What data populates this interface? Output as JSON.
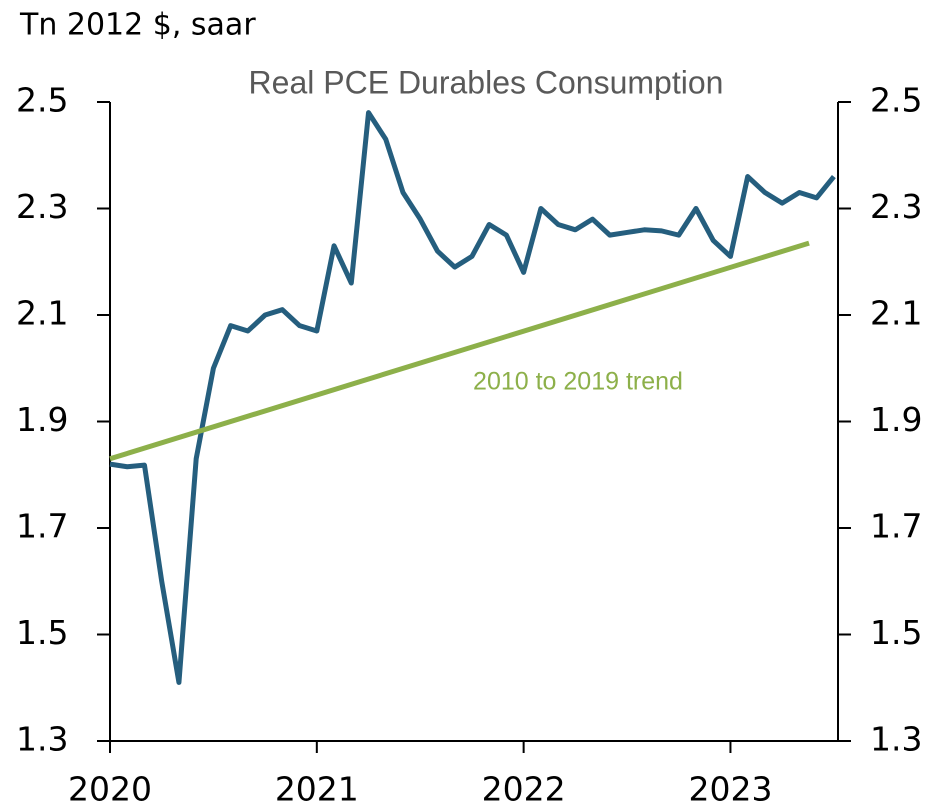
{
  "chart_data": {
    "type": "line",
    "title": "Real PCE Durables Consumption",
    "y_label": "Tn 2012 $, saar",
    "annotation": "2010 to 2019 trend",
    "xlim": [
      2020,
      2023.52
    ],
    "xticks": [
      2020,
      2021,
      2022,
      2023
    ],
    "ylim": [
      1.3,
      2.5
    ],
    "yticks": [
      1.3,
      1.5,
      1.7,
      1.9,
      2.1,
      2.3,
      2.5
    ],
    "y2lim": [
      1.3,
      2.5
    ],
    "y2ticks": [
      1.3,
      1.5,
      1.7,
      1.9,
      2.1,
      2.3,
      2.5
    ],
    "series": [
      {
        "name": "Real PCE Durables",
        "color": "#255e7e",
        "x": [
          2020,
          2020.0833,
          2020.1667,
          2020.25,
          2020.3333,
          2020.4167,
          2020.5,
          2020.5833,
          2020.6667,
          2020.75,
          2020.8333,
          2020.9167,
          2021,
          2021.0833,
          2021.1667,
          2021.25,
          2021.3333,
          2021.4167,
          2021.5,
          2021.5833,
          2021.6667,
          2021.75,
          2021.8333,
          2021.9167,
          2022,
          2022.0833,
          2022.1667,
          2022.25,
          2022.3333,
          2022.4167,
          2022.5,
          2022.5833,
          2022.6667,
          2022.75,
          2022.8333,
          2022.9167,
          2023,
          2023.0833,
          2023.1667,
          2023.25,
          2023.3333,
          2023.4167,
          2023.5
        ],
        "values": [
          1.82,
          1.815,
          1.818,
          1.6,
          1.41,
          1.83,
          2.0,
          2.08,
          2.07,
          2.1,
          2.11,
          2.08,
          2.07,
          2.23,
          2.16,
          2.48,
          2.43,
          2.33,
          2.28,
          2.22,
          2.19,
          2.21,
          2.27,
          2.25,
          2.18,
          2.3,
          2.27,
          2.26,
          2.28,
          2.25,
          2.255,
          2.26,
          2.258,
          2.25,
          2.3,
          2.24,
          2.21,
          2.36,
          2.33,
          2.31,
          2.33,
          2.32,
          2.36
        ]
      },
      {
        "name": "2010 to 2019 trend",
        "color": "#8db04a",
        "x": [
          2020,
          2023.38
        ],
        "values": [
          1.83,
          2.235
        ]
      }
    ]
  }
}
